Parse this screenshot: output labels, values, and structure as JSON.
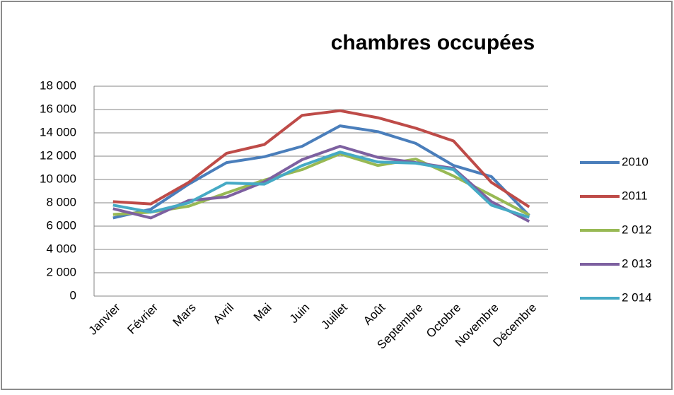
{
  "chart_data": {
    "type": "line",
    "title": "chambres occupées",
    "categories": [
      "Janvier",
      "Février",
      "Mars",
      "Avril",
      "Mai",
      "Juin",
      "Juillet",
      "Août",
      "Septembre",
      "Octobre",
      "Novembre",
      "Décembre"
    ],
    "series": [
      {
        "name": "2010",
        "color": "#4a7ebb",
        "values": [
          6700,
          7450,
          9600,
          11450,
          11950,
          12850,
          14600,
          14100,
          13100,
          11200,
          10250,
          6900
        ]
      },
      {
        "name": "2011",
        "color": "#be4b48",
        "values": [
          8100,
          7900,
          9750,
          12250,
          13000,
          15500,
          15900,
          15300,
          14400,
          13300,
          9750,
          7650
        ]
      },
      {
        "name": "2 012",
        "color": "#98b954",
        "values": [
          7000,
          7200,
          7700,
          8850,
          9950,
          10850,
          12200,
          11200,
          11750,
          10300,
          8650,
          6950
        ]
      },
      {
        "name": "2 013",
        "color": "#7d60a0",
        "values": [
          7500,
          6700,
          8200,
          8500,
          9800,
          11700,
          12850,
          11900,
          11450,
          10950,
          8100,
          6400
        ]
      },
      {
        "name": "2 014",
        "color": "#46aac5",
        "values": [
          7800,
          7200,
          8000,
          9700,
          9600,
          11200,
          12350,
          11500,
          11400,
          10850,
          7800,
          6750
        ]
      }
    ],
    "ylim": [
      0,
      18000
    ],
    "yticks": [
      0,
      {
        "value": 2000,
        "label": "2 000"
      },
      {
        "value": 4000,
        "label": "4 000"
      },
      {
        "value": 6000,
        "label": "6 000"
      },
      {
        "value": 8000,
        "label": "8 000"
      },
      {
        "value": 10000,
        "label": "10 000"
      },
      {
        "value": 12000,
        "label": "12 000"
      },
      {
        "value": 14000,
        "label": "14 000"
      },
      {
        "value": 16000,
        "label": "16 000"
      },
      {
        "value": 18000,
        "label": "18 000"
      }
    ],
    "grid": true,
    "legend": "right"
  }
}
